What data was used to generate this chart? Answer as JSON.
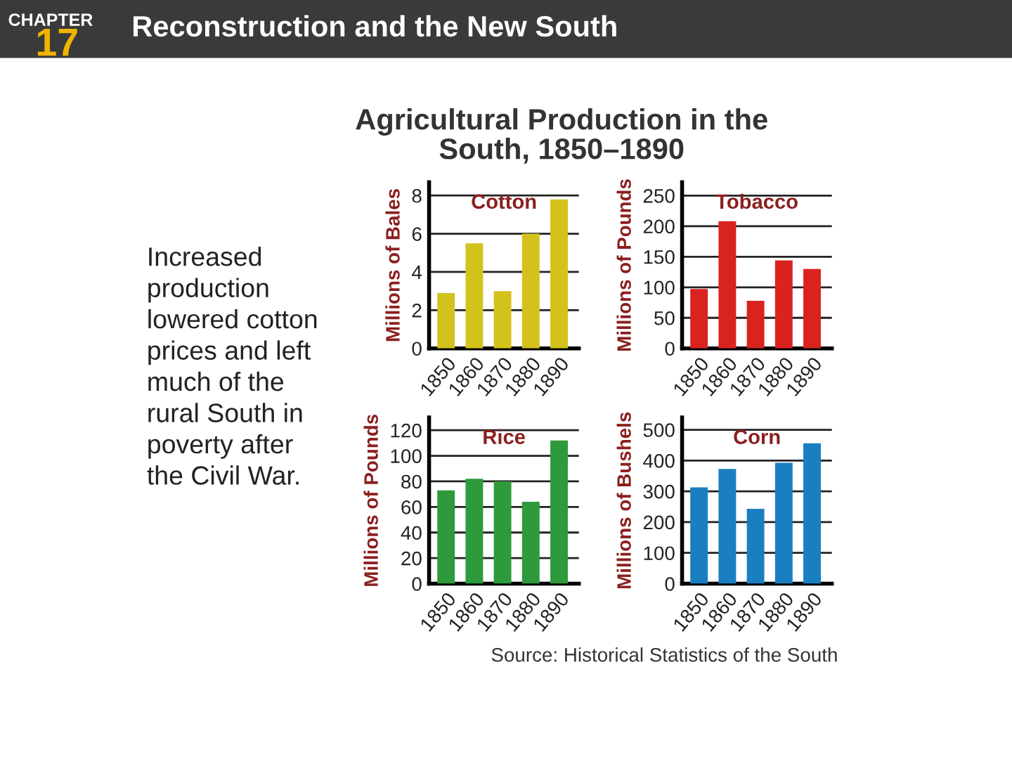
{
  "chart_data": [
    {
      "type": "other",
      "title": "Agricultural Production in the South, 1850–1890",
      "annotations": [
        "CHAPTER",
        "17",
        "Reconstruction and the New South",
        "Increased\nproduction\nlowered cotton\nprices and left\nmuch of the\nrural South in\npoverty after\nthe Civil War.",
        "Source: Historical Statistics of the South"
      ]
    },
    {
      "type": "bar",
      "title": "Cotton",
      "ylabel": "Millions of Bales",
      "categories": [
        "1850",
        "1860",
        "1870",
        "1880",
        "1890"
      ],
      "values": [
        2.9,
        5.5,
        3.0,
        6.0,
        7.8
      ],
      "color": "#d4c21c",
      "ylim": [
        0,
        8.7
      ],
      "yticks": [
        0,
        2,
        4,
        6,
        8
      ],
      "grid": "y"
    },
    {
      "type": "bar",
      "title": "Tobacco",
      "ylabel": "Millions of Pounds",
      "categories": [
        "1850",
        "1860",
        "1870",
        "1880",
        "1890"
      ],
      "values": [
        97,
        208,
        78,
        144,
        130
      ],
      "color": "#d9231f",
      "ylim": [
        0,
        272
      ],
      "yticks": [
        0,
        50,
        100,
        150,
        200,
        250
      ],
      "grid": "y"
    },
    {
      "type": "bar",
      "title": "Rice",
      "ylabel": "Millions of Pounds",
      "categories": [
        "1850",
        "1860",
        "1870",
        "1880",
        "1890"
      ],
      "values": [
        73,
        82,
        80,
        64,
        112
      ],
      "color": "#2e9a3c",
      "ylim": [
        0,
        130
      ],
      "yticks": [
        0,
        20,
        40,
        60,
        80,
        100,
        120
      ],
      "grid": "y"
    },
    {
      "type": "bar",
      "title": "Corn",
      "ylabel": "Millions of Bushels",
      "categories": [
        "1850",
        "1860",
        "1870",
        "1880",
        "1890"
      ],
      "values": [
        313,
        373,
        243,
        393,
        456
      ],
      "color": "#1a7fc0",
      "ylim": [
        0,
        540
      ],
      "yticks": [
        0,
        100,
        200,
        300,
        400,
        500
      ],
      "grid": "y"
    }
  ]
}
